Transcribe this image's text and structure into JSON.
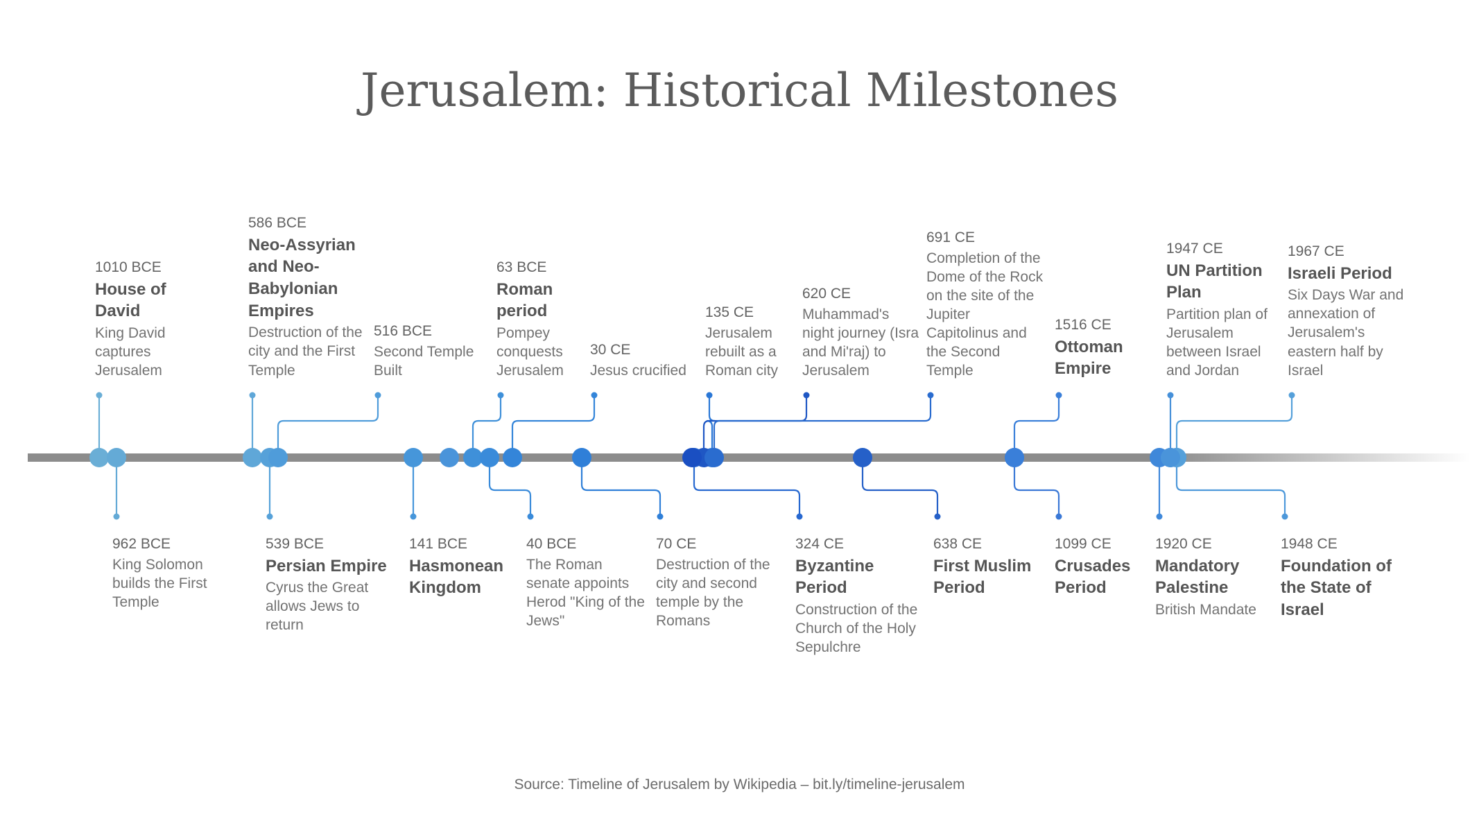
{
  "title": "Jerusalem: Historical Milestones",
  "source": "Source: Timeline of Jerusalem by Wikipedia – bit.ly/timeline-jerusalem",
  "colors": {
    "axis": "#8c8c8c",
    "connector_light": "#5aa6d8",
    "connector_dark": "#1f56c8",
    "text": "#5b5b5b"
  },
  "events": [
    {
      "id": "e1010bce",
      "date": "1010 BCE",
      "name": "House of David",
      "desc": "King David captures Jerusalem",
      "side": "top",
      "color": "#6aaed6"
    },
    {
      "id": "e962bce",
      "date": "962 BCE",
      "name": "",
      "desc": "King Solomon builds the First Temple",
      "side": "bottom",
      "color": "#64aad6"
    },
    {
      "id": "e586bce",
      "date": "586 BCE",
      "name": "Neo-Assyrian and Neo-Babylonian Empires",
      "desc": "Destruction of the city and the First Temple",
      "side": "top",
      "color": "#5fa7d8"
    },
    {
      "id": "e539bce",
      "date": "539 BCE",
      "name": "Persian Empire",
      "desc": "Cyrus the Great allows Jews to return",
      "side": "bottom",
      "color": "#56a1d9"
    },
    {
      "id": "e516bce",
      "date": "516 BCE",
      "name": "",
      "desc": "Second Temple Built",
      "side": "top",
      "color": "#4f9cda"
    },
    {
      "id": "e141bce",
      "date": "141 BCE",
      "name": "Hasmonean Kingdom",
      "desc": "",
      "side": "bottom",
      "color": "#4696da"
    },
    {
      "id": "e63bce",
      "date": "63 BCE",
      "name": "Roman period",
      "desc": "Pompey conquests Jerusalem",
      "side": "top",
      "color": "#3f90d9"
    },
    {
      "id": "e40bce",
      "date": "40 BCE",
      "name": "",
      "desc": "The Roman senate appoints Herod \"King of the Jews\"",
      "side": "bottom",
      "color": "#3a8bda"
    },
    {
      "id": "e30ce",
      "date": "30 CE",
      "name": "",
      "desc": "Jesus crucified",
      "side": "top",
      "color": "#3485d9"
    },
    {
      "id": "e70ce",
      "date": "70 CE",
      "name": "",
      "desc": "Destruction of the city and second temple by the Romans",
      "side": "bottom",
      "color": "#2f7fd8"
    },
    {
      "id": "e135ce",
      "date": "135 CE",
      "name": "",
      "desc": "Jerusalem rebuilt as a Roman city",
      "side": "top",
      "color": "#2a77d6"
    },
    {
      "id": "e324ce",
      "date": "324 CE",
      "name": "Byzantine Period",
      "desc": "Construction of the Church of the Holy Sepulchre",
      "side": "bottom",
      "color": "#2768d0"
    },
    {
      "id": "e620ce",
      "date": "620 CE",
      "name": "",
      "desc": "Muhammad's night journey (Isra and Mi'raj) to Jerusalem",
      "side": "top",
      "color": "#1f57c4"
    },
    {
      "id": "e638ce",
      "date": "638 CE",
      "name": "First Muslim Period",
      "desc": "",
      "side": "bottom",
      "color": "#2560c8"
    },
    {
      "id": "e691ce",
      "date": "691 CE",
      "name": "",
      "desc": "Completion of the Dome of the Rock on the site of the Jupiter Capitolinus and the Second Temple",
      "side": "top",
      "color": "#2a6ccf"
    },
    {
      "id": "e1099ce",
      "date": "1099 CE",
      "name": "Crusades Period",
      "desc": "",
      "side": "bottom",
      "color": "#3a78d6"
    },
    {
      "id": "e1516ce",
      "date": "1516 CE",
      "name": "Ottoman Empire",
      "desc": "",
      "side": "top",
      "color": "#3a7fd9"
    },
    {
      "id": "e1920ce",
      "date": "1920 CE",
      "name": "Mandatory Palestine",
      "desc": "British Mandate",
      "side": "bottom",
      "color": "#3f88da"
    },
    {
      "id": "e1947ce",
      "date": "1947 CE",
      "name": "UN Partition Plan",
      "desc": "Partition plan of Jerusalem between Israel and Jordan",
      "side": "top",
      "color": "#4690d9"
    },
    {
      "id": "e1948ce",
      "date": "1948 CE",
      "name": "Foundation of the State of Israel",
      "desc": "",
      "side": "bottom",
      "color": "#4d98da"
    },
    {
      "id": "e1967ce",
      "date": "1967 CE",
      "name": "Israeli Period",
      "desc": "Six Days War and annexation of Jerusalem's eastern half by Israel",
      "side": "top",
      "color": "#55a0da"
    }
  ]
}
